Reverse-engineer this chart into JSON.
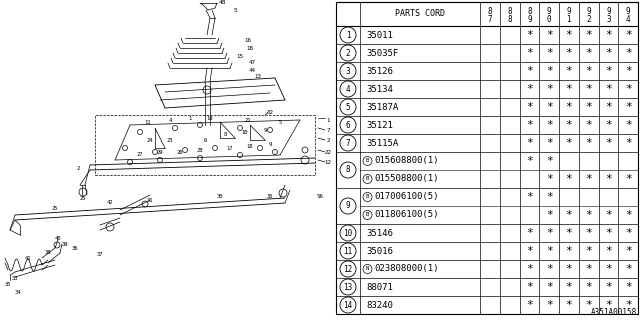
{
  "diagram_label": "A351A00158",
  "col_headers": [
    "8\n7",
    "8\n8",
    "8\n9",
    "9\n0",
    "9\n1",
    "9\n2",
    "9\n3",
    "9\n4"
  ],
  "rows": [
    {
      "num": "1",
      "code": "35011",
      "prefix": "",
      "stars": [
        0,
        0,
        1,
        1,
        1,
        1,
        1,
        1
      ]
    },
    {
      "num": "2",
      "code": "35035F",
      "prefix": "",
      "stars": [
        0,
        0,
        1,
        1,
        1,
        1,
        1,
        1
      ]
    },
    {
      "num": "3",
      "code": "35126",
      "prefix": "",
      "stars": [
        0,
        0,
        1,
        1,
        1,
        1,
        1,
        1
      ]
    },
    {
      "num": "4",
      "code": "35134",
      "prefix": "",
      "stars": [
        0,
        0,
        1,
        1,
        1,
        1,
        1,
        1
      ]
    },
    {
      "num": "5",
      "code": "35187A",
      "prefix": "",
      "stars": [
        0,
        0,
        1,
        1,
        1,
        1,
        1,
        1
      ]
    },
    {
      "num": "6",
      "code": "35121",
      "prefix": "",
      "stars": [
        0,
        0,
        1,
        1,
        1,
        1,
        1,
        1
      ]
    },
    {
      "num": "7",
      "code": "35115A",
      "prefix": "",
      "stars": [
        0,
        0,
        1,
        1,
        1,
        1,
        1,
        1
      ]
    },
    {
      "num": "8a",
      "code": "015608800(1)",
      "prefix": "B",
      "stars": [
        0,
        0,
        1,
        1,
        0,
        0,
        0,
        0
      ]
    },
    {
      "num": "8b",
      "code": "015508800(1)",
      "prefix": "B",
      "stars": [
        0,
        0,
        0,
        1,
        1,
        1,
        1,
        1
      ]
    },
    {
      "num": "9a",
      "code": "017006100(5)",
      "prefix": "B",
      "stars": [
        0,
        0,
        1,
        1,
        0,
        0,
        0,
        0
      ]
    },
    {
      "num": "9b",
      "code": "011806100(5)",
      "prefix": "B",
      "stars": [
        0,
        0,
        0,
        1,
        1,
        1,
        1,
        1
      ]
    },
    {
      "num": "10",
      "code": "35146",
      "prefix": "",
      "stars": [
        0,
        0,
        1,
        1,
        1,
        1,
        1,
        1
      ]
    },
    {
      "num": "11",
      "code": "35016",
      "prefix": "",
      "stars": [
        0,
        0,
        1,
        1,
        1,
        1,
        1,
        1
      ]
    },
    {
      "num": "12",
      "code": "023808000(1)",
      "prefix": "N",
      "stars": [
        0,
        0,
        1,
        1,
        1,
        1,
        1,
        1
      ]
    },
    {
      "num": "13",
      "code": "88071",
      "prefix": "",
      "stars": [
        0,
        0,
        1,
        1,
        1,
        1,
        1,
        1
      ]
    },
    {
      "num": "14",
      "code": "83240",
      "prefix": "",
      "stars": [
        0,
        0,
        1,
        1,
        1,
        1,
        1,
        1
      ]
    }
  ],
  "bg_color": "#ffffff",
  "line_color": "#000000",
  "text_color": "#000000"
}
